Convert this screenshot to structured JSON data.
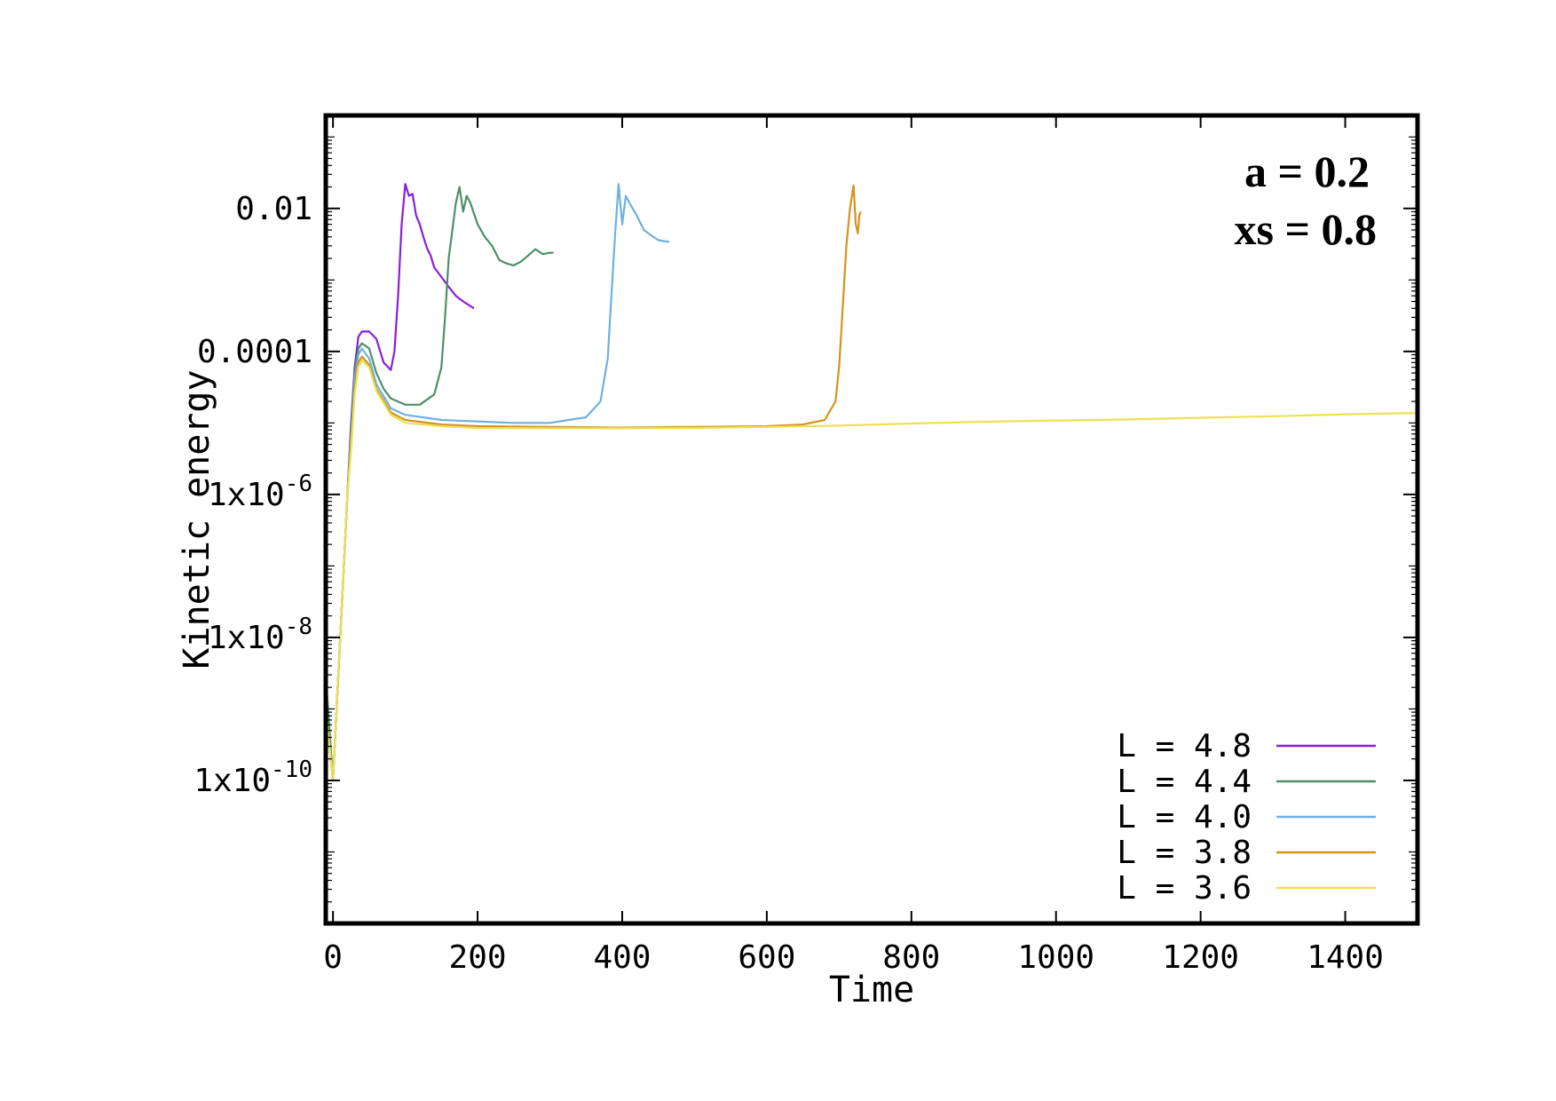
{
  "chart_data": {
    "type": "line",
    "xlabel": "Time",
    "ylabel": "Kinetic energy",
    "xlim": [
      -10,
      1500
    ],
    "ylim": [
      1e-12,
      0.2
    ],
    "yscale": "log",
    "xticks": [
      0,
      200,
      400,
      600,
      800,
      1000,
      1200,
      1400
    ],
    "xtick_labels": [
      "0",
      "200",
      "400",
      "600",
      "800",
      "1000",
      "1200",
      "1400"
    ],
    "yticks": [
      {
        "value": 0.01,
        "base": "0.01",
        "exp": ""
      },
      {
        "value": 0.0001,
        "base": "0.0001",
        "exp": ""
      },
      {
        "value": 1e-06,
        "base": "1x10",
        "exp": "-6"
      },
      {
        "value": 1e-08,
        "base": "1x10",
        "exp": "-8"
      },
      {
        "value": 1e-10,
        "base": "1x10",
        "exp": "-10"
      }
    ],
    "annotations": [
      "a = 0.2",
      "xs = 0.8"
    ],
    "legend_position": "bottom-right",
    "grid": false,
    "series": [
      {
        "name": "L = 4.8",
        "color": "#8a1ed8",
        "points": [
          [
            -10,
            1e-09
          ],
          [
            0,
            1e-10
          ],
          [
            5,
            1e-09
          ],
          [
            10,
            1e-08
          ],
          [
            15,
            1e-07
          ],
          [
            20,
            1e-06
          ],
          [
            25,
            1e-05
          ],
          [
            30,
            6e-05
          ],
          [
            35,
            0.00016
          ],
          [
            40,
            0.00019
          ],
          [
            50,
            0.00019
          ],
          [
            60,
            0.00015
          ],
          [
            70,
            7e-05
          ],
          [
            80,
            5.5e-05
          ],
          [
            85,
            0.0001
          ],
          [
            90,
            0.0006
          ],
          [
            95,
            0.006
          ],
          [
            100,
            0.022
          ],
          [
            105,
            0.015
          ],
          [
            110,
            0.016
          ],
          [
            115,
            0.008
          ],
          [
            120,
            0.006
          ],
          [
            125,
            0.004
          ],
          [
            130,
            0.0028
          ],
          [
            135,
            0.0022
          ],
          [
            140,
            0.0015
          ],
          [
            150,
            0.0011
          ],
          [
            160,
            0.0008
          ],
          [
            170,
            0.0006
          ],
          [
            180,
            0.0005
          ],
          [
            195,
            0.0004
          ]
        ]
      },
      {
        "name": "L = 4.4",
        "color": "#4c8f68",
        "points": [
          [
            -10,
            3e-09
          ],
          [
            0,
            1e-10
          ],
          [
            5,
            1e-09
          ],
          [
            10,
            1e-08
          ],
          [
            15,
            1e-07
          ],
          [
            20,
            1e-06
          ],
          [
            25,
            8e-06
          ],
          [
            30,
            5e-05
          ],
          [
            35,
            0.00011
          ],
          [
            40,
            0.00013
          ],
          [
            50,
            0.00011
          ],
          [
            60,
            5e-05
          ],
          [
            70,
            3e-05
          ],
          [
            80,
            2.2e-05
          ],
          [
            100,
            1.8e-05
          ],
          [
            120,
            1.8e-05
          ],
          [
            140,
            2.5e-05
          ],
          [
            150,
            6e-05
          ],
          [
            155,
            0.0003
          ],
          [
            160,
            0.002
          ],
          [
            170,
            0.012
          ],
          [
            175,
            0.02
          ],
          [
            180,
            0.009
          ],
          [
            185,
            0.015
          ],
          [
            190,
            0.012
          ],
          [
            200,
            0.006
          ],
          [
            210,
            0.004
          ],
          [
            220,
            0.003
          ],
          [
            230,
            0.0019
          ],
          [
            240,
            0.0017
          ],
          [
            250,
            0.0016
          ],
          [
            260,
            0.0018
          ],
          [
            270,
            0.0022
          ],
          [
            280,
            0.0027
          ],
          [
            290,
            0.0023
          ],
          [
            300,
            0.0024
          ],
          [
            305,
            0.0024
          ]
        ]
      },
      {
        "name": "L = 4.0",
        "color": "#6fb0e0",
        "points": [
          [
            -10,
            1e-09
          ],
          [
            0,
            1e-10
          ],
          [
            5,
            1e-09
          ],
          [
            10,
            1e-08
          ],
          [
            15,
            1e-07
          ],
          [
            20,
            1e-06
          ],
          [
            25,
            6e-06
          ],
          [
            30,
            4e-05
          ],
          [
            35,
            9e-05
          ],
          [
            40,
            0.00011
          ],
          [
            50,
            8e-05
          ],
          [
            60,
            3.5e-05
          ],
          [
            80,
            1.6e-05
          ],
          [
            100,
            1.3e-05
          ],
          [
            150,
            1.1e-05
          ],
          [
            200,
            1.05e-05
          ],
          [
            250,
            1e-05
          ],
          [
            300,
            1e-05
          ],
          [
            350,
            1.2e-05
          ],
          [
            370,
            2e-05
          ],
          [
            380,
            8e-05
          ],
          [
            385,
            0.0006
          ],
          [
            390,
            0.004
          ],
          [
            395,
            0.022
          ],
          [
            400,
            0.006
          ],
          [
            405,
            0.015
          ],
          [
            410,
            0.012
          ],
          [
            420,
            0.008
          ],
          [
            430,
            0.005
          ],
          [
            440,
            0.0042
          ],
          [
            450,
            0.0036
          ],
          [
            465,
            0.0034
          ]
        ]
      },
      {
        "name": "L = 3.8",
        "color": "#d4941a",
        "points": [
          [
            -10,
            1e-09
          ],
          [
            0,
            1e-10
          ],
          [
            5,
            1e-09
          ],
          [
            10,
            1e-08
          ],
          [
            15,
            1e-07
          ],
          [
            20,
            1e-06
          ],
          [
            25,
            5e-06
          ],
          [
            30,
            3e-05
          ],
          [
            35,
            7e-05
          ],
          [
            40,
            8.5e-05
          ],
          [
            50,
            6.5e-05
          ],
          [
            60,
            3e-05
          ],
          [
            80,
            1.4e-05
          ],
          [
            100,
            1.1e-05
          ],
          [
            150,
            9.5e-06
          ],
          [
            200,
            9e-06
          ],
          [
            300,
            8.8e-06
          ],
          [
            400,
            8.6e-06
          ],
          [
            500,
            8.8e-06
          ],
          [
            600,
            9e-06
          ],
          [
            650,
            9.5e-06
          ],
          [
            680,
            1.1e-05
          ],
          [
            695,
            2e-05
          ],
          [
            700,
            6e-05
          ],
          [
            705,
            0.0004
          ],
          [
            710,
            0.003
          ],
          [
            715,
            0.01
          ],
          [
            720,
            0.021
          ],
          [
            723,
            0.006
          ],
          [
            726,
            0.0045
          ],
          [
            728,
            0.008
          ],
          [
            730,
            0.009
          ]
        ]
      },
      {
        "name": "L = 3.6",
        "color": "#ede053",
        "points": [
          [
            -10,
            1e-09
          ],
          [
            0,
            1e-10
          ],
          [
            5,
            1e-09
          ],
          [
            10,
            1e-08
          ],
          [
            15,
            1e-07
          ],
          [
            20,
            1e-06
          ],
          [
            25,
            4e-06
          ],
          [
            30,
            2.5e-05
          ],
          [
            35,
            6e-05
          ],
          [
            40,
            7.5e-05
          ],
          [
            50,
            6e-05
          ],
          [
            60,
            2.8e-05
          ],
          [
            80,
            1.3e-05
          ],
          [
            100,
            1e-05
          ],
          [
            150,
            9e-06
          ],
          [
            200,
            8.5e-06
          ],
          [
            300,
            8.4e-06
          ],
          [
            400,
            8.4e-06
          ],
          [
            500,
            8.5e-06
          ],
          [
            600,
            8.8e-06
          ],
          [
            700,
            9.2e-06
          ],
          [
            800,
            9.8e-06
          ],
          [
            900,
            1.04e-05
          ],
          [
            1000,
            1.08e-05
          ],
          [
            1100,
            1.12e-05
          ],
          [
            1200,
            1.18e-05
          ],
          [
            1300,
            1.24e-05
          ],
          [
            1400,
            1.32e-05
          ],
          [
            1500,
            1.38e-05
          ]
        ]
      }
    ]
  }
}
